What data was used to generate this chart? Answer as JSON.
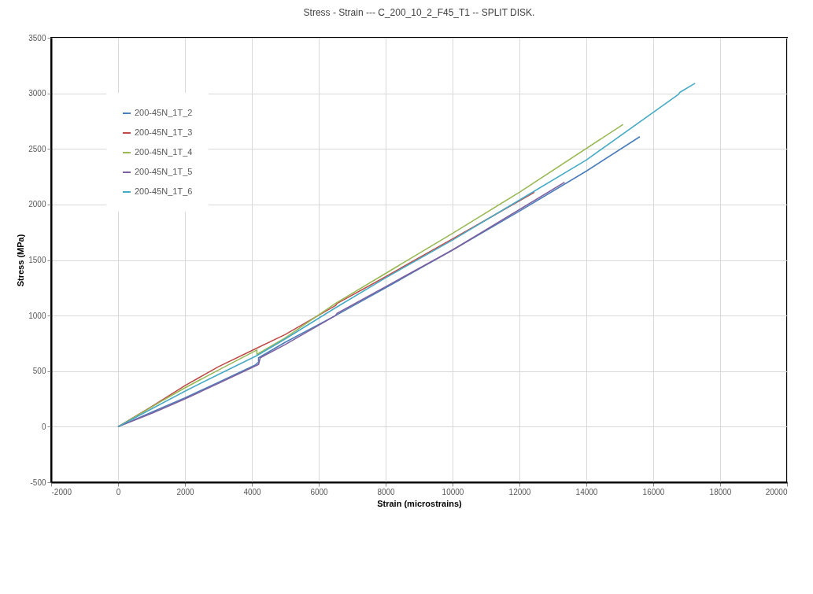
{
  "chart_data": {
    "type": "line",
    "title": "Stress - Strain --- C_200_10_2_F45_T1 --  SPLIT DISK.",
    "xlabel": "Strain (microstrains)",
    "ylabel": "Stress (MPa)",
    "xlim": [
      -2000,
      20000
    ],
    "xticks": [
      -2000,
      0,
      2000,
      4000,
      6000,
      8000,
      10000,
      12000,
      14000,
      16000,
      18000,
      20000
    ],
    "ylim": [
      -500,
      3500
    ],
    "yticks": [
      -500,
      0,
      500,
      1000,
      1500,
      2000,
      2500,
      3000,
      3500
    ],
    "grid": true,
    "legend": "top left",
    "marker": "none",
    "line_style": "solid",
    "series": [
      {
        "name": "200-45N_1T_2",
        "color": "#4a7ebb",
        "x": [
          0,
          1000,
          2000,
          3000,
          4100,
          4200,
          4200,
          5000,
          6500,
          8000,
          10000,
          12000,
          14000,
          15600
        ],
        "values": [
          0,
          130,
          260,
          400,
          555,
          580,
          620,
          760,
          1000,
          1250,
          1590,
          1940,
          2300,
          2610
        ]
      },
      {
        "name": "200-45N_1T_3",
        "color": "#be4b48",
        "x": [
          0,
          1000,
          2000,
          3000,
          4100,
          5000,
          6500,
          6550,
          8000,
          10000,
          12450
        ],
        "values": [
          0,
          180,
          370,
          540,
          700,
          830,
          1090,
          1110,
          1350,
          1690,
          2110
        ]
      },
      {
        "name": "200-45N_1T_4",
        "color": "#98b954",
        "x": [
          0,
          1300,
          2000,
          3000,
          4150,
          4150,
          5000,
          6500,
          8000,
          10000,
          12000,
          15100
        ],
        "values": [
          0,
          230,
          350,
          510,
          690,
          650,
          800,
          1110,
          1380,
          1740,
          2110,
          2720
        ]
      },
      {
        "name": "200-45N_1T_5",
        "color": "#7d60a0",
        "x": [
          0,
          1000,
          2000,
          3000,
          4200,
          4250,
          5000,
          6500,
          6550,
          8000,
          10000,
          13350
        ],
        "values": [
          0,
          120,
          250,
          390,
          560,
          620,
          740,
          1000,
          1020,
          1260,
          1590,
          2200
        ]
      },
      {
        "name": "200-45N_1T_6",
        "color": "#46aac5",
        "x": [
          0,
          1000,
          2000,
          3000,
          4150,
          5000,
          6500,
          8000,
          10000,
          12000,
          14000,
          16750,
          16800,
          17250
        ],
        "values": [
          0,
          160,
          320,
          470,
          640,
          790,
          1070,
          1340,
          1680,
          2040,
          2400,
          2990,
          3010,
          3090
        ]
      }
    ]
  }
}
